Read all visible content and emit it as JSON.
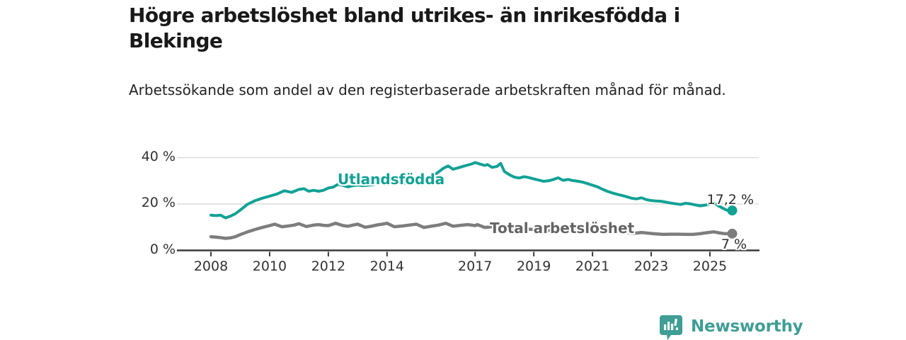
{
  "header": {
    "title": "Högre arbetslöshet bland utrikes- än inrikesfödda i Blekinge",
    "subtitle": "Arbetssökande som andel av den registerbaserade arbetskraften månad för månad."
  },
  "footer": {
    "brand": "Newsworthy",
    "brand_color": "#3f9e95",
    "logo_icon": "newsworthy-speech-bubble-barchart-icon"
  },
  "chart_data": {
    "type": "line",
    "title": "Högre arbetslöshet bland utrikes- än inrikesfödda i Blekinge",
    "xlabel": "",
    "ylabel": "",
    "grid": "horizontal",
    "legend_position": "inline-labels",
    "x_axis": {
      "unit": "year",
      "range": [
        2008,
        2026.3
      ],
      "ticks": [
        2008,
        2010,
        2012,
        2014,
        2017,
        2019,
        2021,
        2023,
        2025
      ]
    },
    "y_axis": {
      "unit": "%",
      "range": [
        0,
        44
      ],
      "ticks": [
        {
          "value": 0,
          "label": "0 %"
        },
        {
          "value": 20,
          "label": "20 %"
        },
        {
          "value": 40,
          "label": "40 %"
        }
      ]
    },
    "series": [
      {
        "name": "Utlandsfödda",
        "color": "#12a195",
        "line_width": 4,
        "end_label": "17,2 %",
        "end_value": 17.2,
        "points": [
          [
            2008.0,
            15.2
          ],
          [
            2008.17,
            15.0
          ],
          [
            2008.33,
            15.2
          ],
          [
            2008.5,
            14.0
          ],
          [
            2008.67,
            14.8
          ],
          [
            2008.83,
            15.8
          ],
          [
            2009.0,
            17.4
          ],
          [
            2009.25,
            19.9
          ],
          [
            2009.5,
            21.4
          ],
          [
            2009.75,
            22.5
          ],
          [
            2010.0,
            23.4
          ],
          [
            2010.25,
            24.3
          ],
          [
            2010.5,
            25.7
          ],
          [
            2010.75,
            25.0
          ],
          [
            2011.0,
            26.3
          ],
          [
            2011.17,
            26.6
          ],
          [
            2011.33,
            25.5
          ],
          [
            2011.5,
            25.9
          ],
          [
            2011.67,
            25.5
          ],
          [
            2011.83,
            25.9
          ],
          [
            2012.0,
            26.9
          ],
          [
            2012.17,
            27.3
          ],
          [
            2012.33,
            28.5
          ],
          [
            2012.5,
            28.0
          ],
          [
            2012.67,
            27.4
          ],
          [
            2012.83,
            27.9
          ],
          [
            2013.0,
            28.2
          ],
          [
            2013.17,
            27.9
          ],
          [
            2013.33,
            28.1
          ],
          [
            2013.5,
            28.3
          ],
          [
            2013.67,
            28.7
          ],
          [
            2013.83,
            28.9
          ],
          [
            2014.0,
            29.8
          ],
          [
            2014.17,
            28.7
          ],
          [
            2014.33,
            28.8
          ],
          [
            2014.5,
            28.9
          ],
          [
            2014.67,
            29.0
          ],
          [
            2014.83,
            29.4
          ],
          [
            2015.0,
            30.1
          ],
          [
            2015.08,
            30.8
          ],
          [
            2015.25,
            29.7
          ],
          [
            2015.42,
            30.6
          ],
          [
            2015.58,
            32.1
          ],
          [
            2015.75,
            33.8
          ],
          [
            2015.92,
            35.4
          ],
          [
            2016.08,
            36.4
          ],
          [
            2016.25,
            35.0
          ],
          [
            2016.42,
            35.6
          ],
          [
            2016.58,
            36.2
          ],
          [
            2016.75,
            36.8
          ],
          [
            2016.92,
            37.4
          ],
          [
            2017.0,
            37.9
          ],
          [
            2017.17,
            37.2
          ],
          [
            2017.33,
            36.6
          ],
          [
            2017.42,
            37.0
          ],
          [
            2017.58,
            35.8
          ],
          [
            2017.75,
            36.2
          ],
          [
            2017.87,
            37.5
          ],
          [
            2018.0,
            34.0
          ],
          [
            2018.17,
            32.6
          ],
          [
            2018.33,
            31.6
          ],
          [
            2018.5,
            31.2
          ],
          [
            2018.67,
            31.8
          ],
          [
            2018.83,
            31.4
          ],
          [
            2019.0,
            30.8
          ],
          [
            2019.17,
            30.3
          ],
          [
            2019.33,
            29.8
          ],
          [
            2019.5,
            30.0
          ],
          [
            2019.67,
            30.6
          ],
          [
            2019.83,
            31.3
          ],
          [
            2020.0,
            30.2
          ],
          [
            2020.17,
            30.6
          ],
          [
            2020.33,
            30.1
          ],
          [
            2020.5,
            29.8
          ],
          [
            2020.67,
            29.4
          ],
          [
            2020.83,
            28.8
          ],
          [
            2021.0,
            28.1
          ],
          [
            2021.17,
            27.4
          ],
          [
            2021.33,
            26.4
          ],
          [
            2021.5,
            25.5
          ],
          [
            2021.67,
            24.8
          ],
          [
            2021.83,
            24.2
          ],
          [
            2022.0,
            23.7
          ],
          [
            2022.17,
            23.1
          ],
          [
            2022.33,
            22.5
          ],
          [
            2022.5,
            22.2
          ],
          [
            2022.67,
            22.7
          ],
          [
            2022.83,
            21.9
          ],
          [
            2023.0,
            21.5
          ],
          [
            2023.17,
            21.3
          ],
          [
            2023.33,
            21.2
          ],
          [
            2023.5,
            20.8
          ],
          [
            2023.67,
            20.4
          ],
          [
            2023.83,
            20.1
          ],
          [
            2024.0,
            19.8
          ],
          [
            2024.17,
            20.3
          ],
          [
            2024.33,
            20.1
          ],
          [
            2024.5,
            19.6
          ],
          [
            2024.67,
            19.2
          ],
          [
            2024.83,
            19.5
          ],
          [
            2025.0,
            19.9
          ],
          [
            2025.13,
            20.4
          ],
          [
            2025.25,
            19.5
          ],
          [
            2025.42,
            18.3
          ],
          [
            2025.58,
            17.3
          ],
          [
            2025.67,
            16.8
          ],
          [
            2025.76,
            17.2
          ]
        ]
      },
      {
        "name": "Total arbetslöshet",
        "color": "#7d7d7d",
        "line_width": 4.5,
        "end_label": "7 %",
        "end_value": 7.2,
        "points": [
          [
            2008.0,
            5.9
          ],
          [
            2008.17,
            5.7
          ],
          [
            2008.33,
            5.5
          ],
          [
            2008.5,
            5.2
          ],
          [
            2008.67,
            5.4
          ],
          [
            2008.83,
            5.9
          ],
          [
            2009.0,
            6.8
          ],
          [
            2009.25,
            8.0
          ],
          [
            2009.5,
            9.0
          ],
          [
            2009.75,
            9.9
          ],
          [
            2010.0,
            10.7
          ],
          [
            2010.17,
            11.3
          ],
          [
            2010.42,
            10.2
          ],
          [
            2010.67,
            10.6
          ],
          [
            2010.83,
            10.9
          ],
          [
            2011.0,
            11.5
          ],
          [
            2011.25,
            10.3
          ],
          [
            2011.5,
            10.9
          ],
          [
            2011.67,
            11.1
          ],
          [
            2011.83,
            10.8
          ],
          [
            2012.0,
            10.7
          ],
          [
            2012.25,
            11.7
          ],
          [
            2012.5,
            10.7
          ],
          [
            2012.67,
            10.4
          ],
          [
            2012.83,
            10.9
          ],
          [
            2013.0,
            11.3
          ],
          [
            2013.25,
            10.0
          ],
          [
            2013.5,
            10.5
          ],
          [
            2013.67,
            11.0
          ],
          [
            2013.83,
            11.3
          ],
          [
            2014.0,
            11.7
          ],
          [
            2014.25,
            10.2
          ],
          [
            2014.5,
            10.5
          ],
          [
            2014.75,
            10.9
          ],
          [
            2015.0,
            11.3
          ],
          [
            2015.25,
            9.9
          ],
          [
            2015.5,
            10.4
          ],
          [
            2015.75,
            10.9
          ],
          [
            2016.0,
            11.7
          ],
          [
            2016.25,
            10.4
          ],
          [
            2016.5,
            10.8
          ],
          [
            2016.75,
            11.1
          ],
          [
            2017.0,
            10.7
          ],
          [
            2017.08,
            11.1
          ],
          [
            2017.33,
            9.9
          ],
          [
            2017.58,
            10.2
          ],
          [
            2017.83,
            10.1
          ],
          [
            2018.0,
            10.0
          ],
          [
            2018.25,
            9.7
          ],
          [
            2018.5,
            9.4
          ],
          [
            2018.75,
            9.2
          ],
          [
            2019.0,
            9.0
          ],
          [
            2019.25,
            8.8
          ],
          [
            2019.5,
            8.6
          ],
          [
            2019.75,
            8.4
          ],
          [
            2020.0,
            8.3
          ],
          [
            2020.25,
            8.6
          ],
          [
            2020.5,
            8.5
          ],
          [
            2020.75,
            8.3
          ],
          [
            2021.0,
            8.2
          ],
          [
            2021.25,
            8.0
          ],
          [
            2021.5,
            7.9
          ],
          [
            2021.75,
            7.8
          ],
          [
            2022.0,
            7.7
          ],
          [
            2022.17,
            7.6
          ],
          [
            2022.42,
            7.4
          ],
          [
            2022.67,
            7.7
          ],
          [
            2022.83,
            7.5
          ],
          [
            2023.0,
            7.3
          ],
          [
            2023.17,
            7.1
          ],
          [
            2023.42,
            6.9
          ],
          [
            2023.67,
            7.0
          ],
          [
            2023.92,
            7.0
          ],
          [
            2024.17,
            6.9
          ],
          [
            2024.42,
            6.9
          ],
          [
            2024.67,
            7.2
          ],
          [
            2024.83,
            7.5
          ],
          [
            2025.0,
            7.8
          ],
          [
            2025.13,
            8.0
          ],
          [
            2025.33,
            7.5
          ],
          [
            2025.5,
            7.2
          ],
          [
            2025.76,
            7.2
          ]
        ]
      }
    ]
  }
}
